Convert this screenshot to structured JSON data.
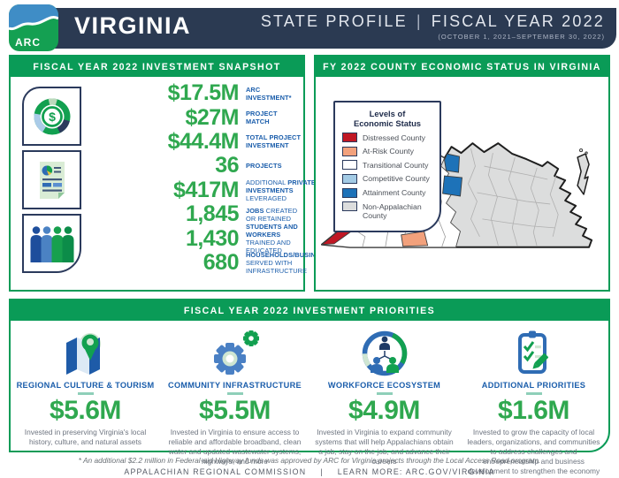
{
  "header": {
    "logo_text": "ARC",
    "state": "VIRGINIA",
    "profile_title": "STATE PROFILE",
    "divider": "|",
    "fiscal_year": "FISCAL YEAR 2022",
    "date_range": "(OCTOBER 1, 2021–SEPTEMBER 30, 2022)"
  },
  "snapshot": {
    "title": "FISCAL YEAR 2022 INVESTMENT SNAPSHOT",
    "stats": [
      {
        "value": "$17.5M",
        "label_html": "<b>ARC<br>INVESTMENT*</b>"
      },
      {
        "value": "$27M",
        "label_html": "<b>PROJECT<br>MATCH</b>"
      },
      {
        "value": "$44.4M",
        "label_html": "<b>TOTAL PROJECT<br>INVESTMENT</b>"
      },
      {
        "value": "36",
        "label_html": "<b>PROJECTS</b>"
      },
      {
        "value": "$417M",
        "label_html": "ADDITIONAL <b>PRIVATE<br>INVESTMENTS</b> LEVERAGED"
      },
      {
        "value": "1,845",
        "label_html": "<b>JOBS</b> CREATED<br>OR RETAINED"
      },
      {
        "value": "1,430",
        "label_html": "<b>STUDENTS AND WORKERS</b><br>TRAINED AND EDUCATED"
      },
      {
        "value": "680",
        "label_html": "<b>HOUSEHOLDS/BUSINESSES</b><br>SERVED WITH INFRASTRUCTURE"
      }
    ]
  },
  "map_panel": {
    "title": "FY 2022 COUNTY ECONOMIC STATUS IN VIRGINIA",
    "legend": {
      "title_html": "Levels of<br>Economic Status",
      "items": [
        {
          "label": "Distressed County",
          "color": "#c01724"
        },
        {
          "label": "At-Risk County",
          "color": "#f2a17c"
        },
        {
          "label": "Transitional County",
          "color": "#ffffff"
        },
        {
          "label": "Competitive County",
          "color": "#a3cbe5"
        },
        {
          "label": "Attainment County",
          "color": "#1d72b8"
        },
        {
          "label": "Non-Appalachian County",
          "color": "#dcdddd"
        }
      ]
    }
  },
  "priorities": {
    "title": "FISCAL YEAR 2022 INVESTMENT PRIORITIES",
    "items": [
      {
        "title": "REGIONAL CULTURE & TOURISM",
        "amount": "$5.6M",
        "description": "Invested in preserving Virginia's local history, culture, and natural assets"
      },
      {
        "title": "COMMUNITY INFRASTRUCTURE",
        "amount": "$5.5M",
        "description": "Invested in Virginia to ensure access to reliable and affordable broadband, clean water and updated wastewater systems, highways, and more"
      },
      {
        "title": "WORKFORCE ECOSYSTEM",
        "amount": "$4.9M",
        "description": "Invested in Virginia to expand community systems that will help Appalachians obtain a job, stay on the job, and advance their careers"
      },
      {
        "title": "ADDITIONAL PRIORITIES",
        "amount": "$1.6M",
        "description": "Invested to grow the capacity of local leaders, organizations, and communities to address challenges and entrepreneurship and business development to strengthen the economy in Appalachian Virginia"
      }
    ]
  },
  "footer": {
    "footnote": "* An additional $2.2 million in Federal-aid Highway funds was approved by ARC for Virginia projects through the Local Access Road program.",
    "org": "APPALACHIAN REGIONAL COMMISSION",
    "divider": "|",
    "learn_more": "LEARN MORE: ARC.GOV/VIRGINIA"
  },
  "colors": {
    "navy": "#2b3a52",
    "green": "#0a9b57",
    "stat_green": "#2fa84f",
    "label_blue": "#1a5dab"
  }
}
